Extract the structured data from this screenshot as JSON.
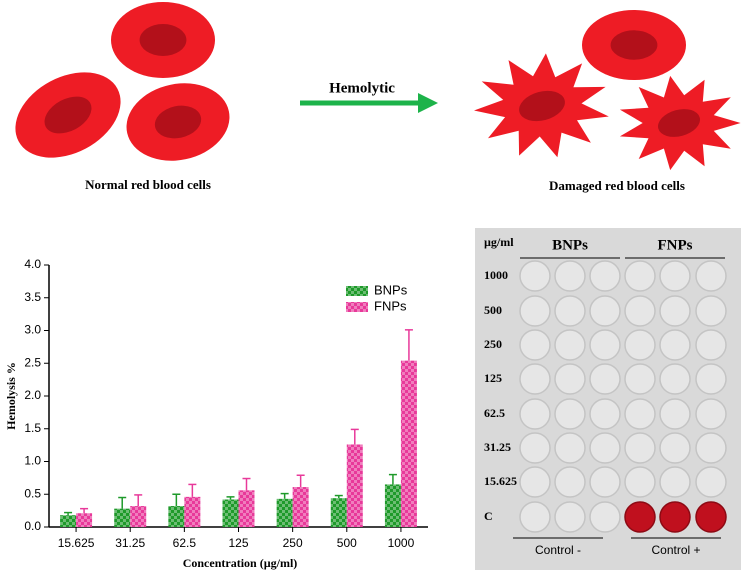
{
  "diagram": {
    "arrow_label": "Hemolytic",
    "left_caption": "Normal red blood cells",
    "right_caption": "Damaged red blood cells"
  },
  "chart_data": {
    "type": "bar",
    "x_label": "Concentration (µg/ml)",
    "y_label": "Hemolysis %",
    "categories": [
      "15.625",
      "31.25",
      "62.5",
      "125",
      "250",
      "500",
      "1000"
    ],
    "series": [
      {
        "name": "BNPs",
        "color": "#1e9a2a",
        "values": [
          0.18,
          0.28,
          0.32,
          0.42,
          0.43,
          0.44,
          0.65
        ],
        "errors": [
          0.04,
          0.17,
          0.18,
          0.04,
          0.08,
          0.04,
          0.15
        ]
      },
      {
        "name": "FNPs",
        "color": "#e8399a",
        "values": [
          0.21,
          0.32,
          0.46,
          0.56,
          0.61,
          1.26,
          2.54
        ],
        "errors": [
          0.07,
          0.17,
          0.19,
          0.18,
          0.18,
          0.23,
          0.47
        ]
      }
    ],
    "ylim": [
      0,
      4
    ],
    "yticks": [
      {
        "value": 0,
        "label": "0.0"
      },
      {
        "value": 0.5,
        "label": "0.5"
      },
      {
        "value": 1,
        "label": "1.0"
      },
      {
        "value": 1.5,
        "label": "1.5"
      },
      {
        "value": 2,
        "label": "2.0"
      },
      {
        "value": 2.5,
        "label": "2.5"
      },
      {
        "value": 3,
        "label": "3.0"
      },
      {
        "value": 3.5,
        "label": "3.5"
      },
      {
        "value": 4,
        "label": "4.0"
      }
    ],
    "legend": "upper right"
  },
  "plate": {
    "unit_label": "µg/ml",
    "columns": [
      "BNPs",
      "FNPs"
    ],
    "rows": [
      "1000",
      "500",
      "250",
      "125",
      "62.5",
      "31.25",
      "15.625",
      "C"
    ],
    "footers": [
      "Control -",
      "Control +"
    ]
  }
}
